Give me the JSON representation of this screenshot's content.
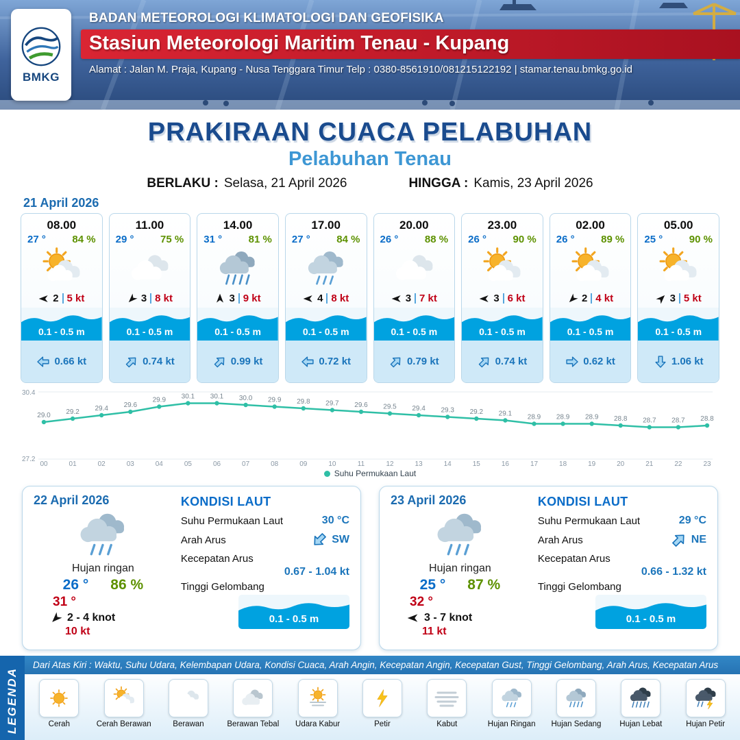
{
  "colors": {
    "title_blue": "#1a4b8e",
    "subtitle_blue": "#3e97d4",
    "accent_blue": "#1b75bb",
    "wave_blue": "#00a2e0",
    "humidity_green": "#5d9100",
    "temp_blue": "#0a6cc8",
    "gust_red": "#c00016",
    "band_red": "#c01b2a"
  },
  "header": {
    "logo_text": "BMKG",
    "org": "BADAN METEOROLOGI KLIMATOLOGI DAN GEOFISIKA",
    "station": "Stasiun Meteorologi Maritim Tenau - Kupang",
    "address": "Alamat : Jalan M. Praja, Kupang - Nusa Tenggara Timur Telp : 0380-8561910/081215122192  | stamar.tenau.bmkg.go.id"
  },
  "title": {
    "main": "PRAKIRAAN CUACA PELABUHAN",
    "sub": "Pelabuhan Tenau"
  },
  "validity": {
    "berlaku_label": "BERLAKU :",
    "berlaku_value": "Selasa, 21 April 2026",
    "hingga_label": "HINGGA :",
    "hingga_value": "Kamis, 23 April 2026"
  },
  "hourly_date": "21 April 2026",
  "hourly": [
    {
      "time": "08.00",
      "temp": "27 °",
      "humidity": "84 %",
      "icon": "cerah-berawan",
      "wind_dir": "W",
      "wind_speed": "2",
      "gust": "5 kt",
      "wave": "0.1 - 0.5 m",
      "current_dir": "W",
      "current_speed": "0.66 kt"
    },
    {
      "time": "11.00",
      "temp": "29 °",
      "humidity": "75 %",
      "icon": "berawan",
      "wind_dir": "SW",
      "wind_speed": "3",
      "gust": "8 kt",
      "wave": "0.1 - 0.5 m",
      "current_dir": "NE",
      "current_speed": "0.74 kt"
    },
    {
      "time": "14.00",
      "temp": "31 °",
      "humidity": "81 %",
      "icon": "hujan-sedang",
      "wind_dir": "N",
      "wind_speed": "3",
      "gust": "9 kt",
      "wave": "0.1 - 0.5 m",
      "current_dir": "NE",
      "current_speed": "0.99 kt"
    },
    {
      "time": "17.00",
      "temp": "27 °",
      "humidity": "84 %",
      "icon": "hujan-ringan",
      "wind_dir": "W",
      "wind_speed": "4",
      "gust": "8 kt",
      "wave": "0.1 - 0.5 m",
      "current_dir": "W",
      "current_speed": "0.72 kt"
    },
    {
      "time": "20.00",
      "temp": "26 °",
      "humidity": "88 %",
      "icon": "berawan",
      "wind_dir": "W",
      "wind_speed": "3",
      "gust": "7 kt",
      "wave": "0.1 - 0.5 m",
      "current_dir": "NE",
      "current_speed": "0.79 kt"
    },
    {
      "time": "23.00",
      "temp": "26 °",
      "humidity": "90 %",
      "icon": "cerah-berawan",
      "wind_dir": "W",
      "wind_speed": "3",
      "gust": "6 kt",
      "wave": "0.1 - 0.5 m",
      "current_dir": "NE",
      "current_speed": "0.74 kt"
    },
    {
      "time": "02.00",
      "temp": "26 °",
      "humidity": "89 %",
      "icon": "cerah-berawan",
      "wind_dir": "SW",
      "wind_speed": "2",
      "gust": "4 kt",
      "wave": "0.1 - 0.5 m",
      "current_dir": "E",
      "current_speed": "0.62 kt"
    },
    {
      "time": "05.00",
      "temp": "25 °",
      "humidity": "90 %",
      "icon": "cerah-berawan",
      "wind_dir": "NE",
      "wind_speed": "3",
      "gust": "5 kt",
      "wave": "0.1 - 0.5 m",
      "current_dir": "S",
      "current_speed": "1.06 kt"
    }
  ],
  "chart_data": {
    "type": "line",
    "legend": "Suhu Permukaan Laut",
    "line_color": "#2fbfa6",
    "ylim": [
      27.2,
      30.4
    ],
    "x": [
      "00",
      "01",
      "02",
      "03",
      "04",
      "05",
      "06",
      "07",
      "08",
      "09",
      "10",
      "11",
      "12",
      "13",
      "14",
      "15",
      "16",
      "17",
      "18",
      "19",
      "20",
      "21",
      "22",
      "23"
    ],
    "series": [
      {
        "name": "Suhu Permukaan Laut",
        "values": [
          29.0,
          29.2,
          29.4,
          29.6,
          29.9,
          30.1,
          30.1,
          30.0,
          29.9,
          29.8,
          29.7,
          29.6,
          29.5,
          29.4,
          29.3,
          29.2,
          29.1,
          28.9,
          28.9,
          28.9,
          28.8,
          28.7,
          28.7,
          28.8
        ]
      }
    ]
  },
  "sea_labels": {
    "title": "KONDISI LAUT",
    "sst": "Suhu Permukaan Laut",
    "dir": "Arah Arus",
    "speed": "Kecepatan Arus",
    "wave": "Tinggi Gelombang"
  },
  "daily": [
    {
      "date": "22 April 2026",
      "icon": "hujan-ringan",
      "condition": "Hujan ringan",
      "temp_min": "26 °",
      "humidity": "86 %",
      "temp_max": "31 °",
      "wind_dir": "SW",
      "wind_range": "2 - 4 knot",
      "gust": "10 kt",
      "sea": {
        "sst": "30 °C",
        "current_dir": "SW",
        "current_speed": "0.67 - 1.04 kt",
        "wave": "0.1 - 0.5 m"
      }
    },
    {
      "date": "23 April 2026",
      "icon": "hujan-ringan",
      "condition": "Hujan ringan",
      "temp_min": "25 °",
      "humidity": "87 %",
      "temp_max": "32 °",
      "wind_dir": "W",
      "wind_range": "3 - 7 knot",
      "gust": "11 kt",
      "sea": {
        "sst": "29 °C",
        "current_dir": "NE",
        "current_speed": "0.66 - 1.32 kt",
        "wave": "0.1 - 0.5 m"
      }
    }
  ],
  "legend": {
    "side_label": "LEGENDA",
    "description": "Dari Atas Kiri : Waktu, Suhu Udara, Kelembapan Udara, Kondisi Cuaca, Arah Angin, Kecepatan Angin, Kecepatan Gust, Tinggi Gelombang, Arah Arus, Kecepatan Arus",
    "items": [
      {
        "label": "Cerah",
        "icon": "cerah"
      },
      {
        "label": "Cerah Berawan",
        "icon": "cerah-berawan"
      },
      {
        "label": "Berawan",
        "icon": "berawan"
      },
      {
        "label": "Berawan Tebal",
        "icon": "berawan-tebal"
      },
      {
        "label": "Udara Kabur",
        "icon": "udara-kabur"
      },
      {
        "label": "Petir",
        "icon": "petir"
      },
      {
        "label": "Kabut",
        "icon": "kabut"
      },
      {
        "label": "Hujan Ringan",
        "icon": "hujan-ringan"
      },
      {
        "label": "Hujan Sedang",
        "icon": "hujan-sedang"
      },
      {
        "label": "Hujan Lebat",
        "icon": "hujan-lebat"
      },
      {
        "label": "Hujan Petir",
        "icon": "hujan-petir"
      }
    ]
  }
}
